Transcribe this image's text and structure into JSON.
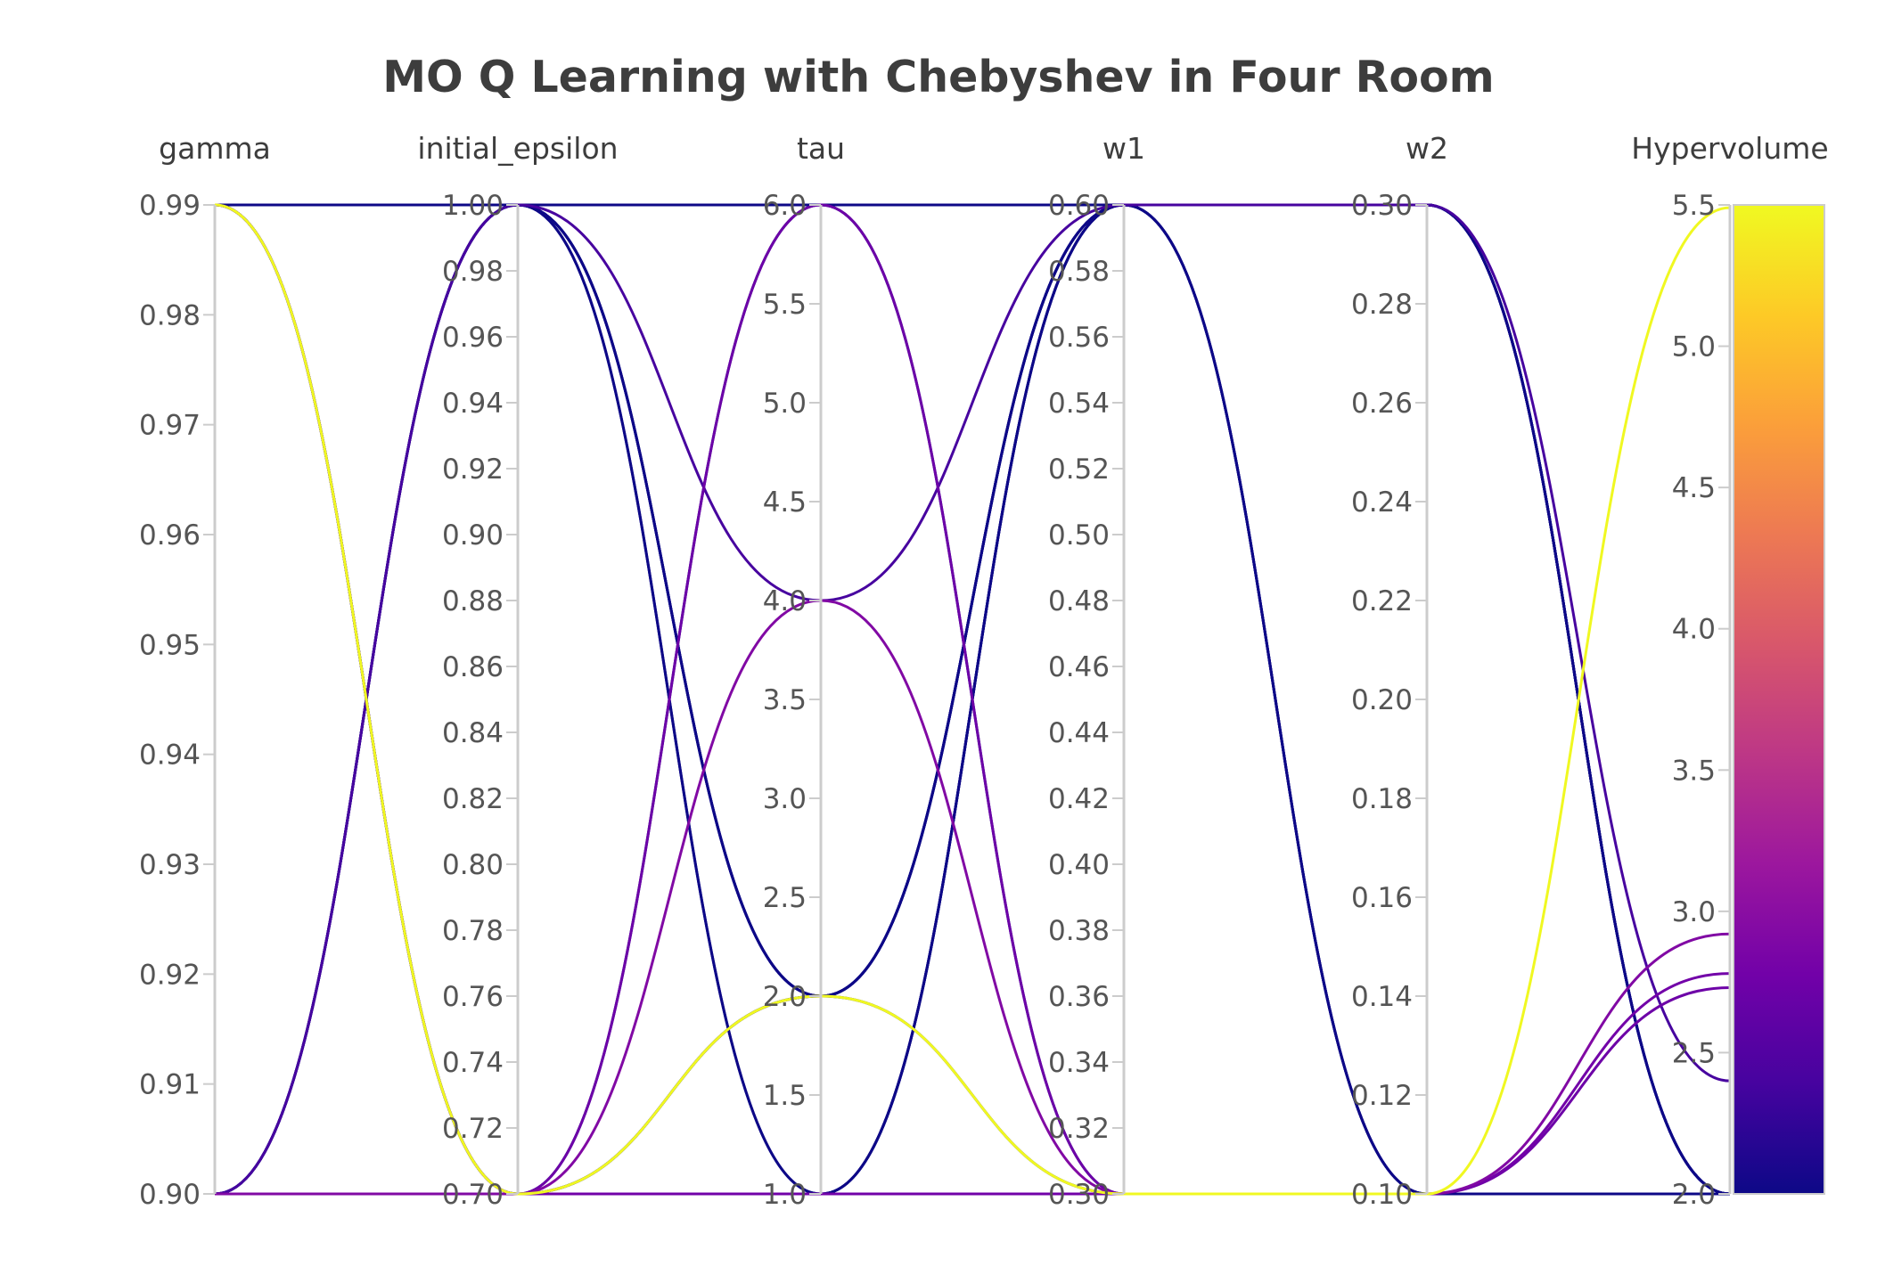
{
  "chart_data": {
    "type": "parallel_coordinates",
    "title": "MO Q Learning with Chebyshev in Four Room",
    "axes": [
      {
        "name": "gamma",
        "range": [
          0.9,
          0.99
        ],
        "ticks": [
          "0.90",
          "0.91",
          "0.92",
          "0.93",
          "0.94",
          "0.95",
          "0.96",
          "0.97",
          "0.98",
          "0.99"
        ]
      },
      {
        "name": "initial_epsilon",
        "range": [
          0.7,
          1.0
        ],
        "ticks": [
          "0.70",
          "0.72",
          "0.74",
          "0.76",
          "0.78",
          "0.80",
          "0.82",
          "0.84",
          "0.86",
          "0.88",
          "0.90",
          "0.92",
          "0.94",
          "0.96",
          "0.98",
          "1.00"
        ]
      },
      {
        "name": "tau",
        "range": [
          1.0,
          6.0
        ],
        "ticks": [
          "1.0",
          "1.5",
          "2.0",
          "2.5",
          "3.0",
          "3.5",
          "4.0",
          "4.5",
          "5.0",
          "5.5",
          "6.0"
        ]
      },
      {
        "name": "w1",
        "range": [
          0.3,
          0.6
        ],
        "ticks": [
          "0.30",
          "0.32",
          "0.34",
          "0.36",
          "0.38",
          "0.40",
          "0.42",
          "0.44",
          "0.46",
          "0.48",
          "0.50",
          "0.52",
          "0.54",
          "0.56",
          "0.58",
          "0.60"
        ]
      },
      {
        "name": "w2",
        "range": [
          0.1,
          0.3
        ],
        "ticks": [
          "0.10",
          "0.12",
          "0.14",
          "0.16",
          "0.18",
          "0.20",
          "0.22",
          "0.24",
          "0.26",
          "0.28",
          "0.30"
        ]
      },
      {
        "name": "Hypervolume",
        "range": [
          2.0,
          5.5
        ],
        "ticks": [
          "2.0",
          "2.5",
          "3.0",
          "3.5",
          "4.0",
          "4.5",
          "5.0",
          "5.5"
        ]
      }
    ],
    "colorscale": {
      "stops": [
        "#0d0887",
        "#46039f",
        "#7201a8",
        "#9c179e",
        "#bd3786",
        "#d8576b",
        "#ed7953",
        "#fb9f3a",
        "#fdca26",
        "#f0f921"
      ],
      "range": [
        2.0,
        5.5
      ],
      "ticks": [
        "2.0",
        "2.5",
        "3.0",
        "3.5",
        "4.0",
        "4.5",
        "5.0",
        "5.5"
      ]
    },
    "lines": [
      [
        0.99,
        0.7,
        2.0,
        0.3,
        0.1,
        5.49
      ],
      [
        0.9,
        0.7,
        4.0,
        0.3,
        0.1,
        2.92
      ],
      [
        0.9,
        0.7,
        6.0,
        0.3,
        0.1,
        2.73
      ],
      [
        0.99,
        0.7,
        1.0,
        0.3,
        0.1,
        2.78
      ],
      [
        0.9,
        1.0,
        4.0,
        0.6,
        0.3,
        2.4
      ],
      [
        0.99,
        1.0,
        2.0,
        0.6,
        0.3,
        2.0
      ],
      [
        0.9,
        0.7,
        1.0,
        0.6,
        0.3,
        2.0
      ],
      [
        0.99,
        1.0,
        2.0,
        0.6,
        0.1,
        2.0
      ],
      [
        0.9,
        1.0,
        1.0,
        0.6,
        0.3,
        2.0
      ],
      [
        0.99,
        1.0,
        6.0,
        0.6,
        0.3,
        2.0
      ],
      [
        0.9,
        0.7,
        2.0,
        0.6,
        0.3,
        2.0
      ],
      [
        0.99,
        0.7,
        6.0,
        0.6,
        0.1,
        2.0
      ],
      [
        0.9,
        1.0,
        2.0,
        0.6,
        0.1,
        2.0
      ],
      [
        0.99,
        0.7,
        2.0,
        0.6,
        0.3,
        2.0
      ],
      [
        0.9,
        1.0,
        6.0,
        0.3,
        0.1,
        2.0
      ],
      [
        0.99,
        0.7,
        1.0,
        0.6,
        0.3,
        2.0
      ],
      [
        0.9,
        1.0,
        1.0,
        0.6,
        0.1,
        2.0
      ],
      [
        0.99,
        1.0,
        2.0,
        0.3,
        0.1,
        2.0
      ]
    ]
  }
}
